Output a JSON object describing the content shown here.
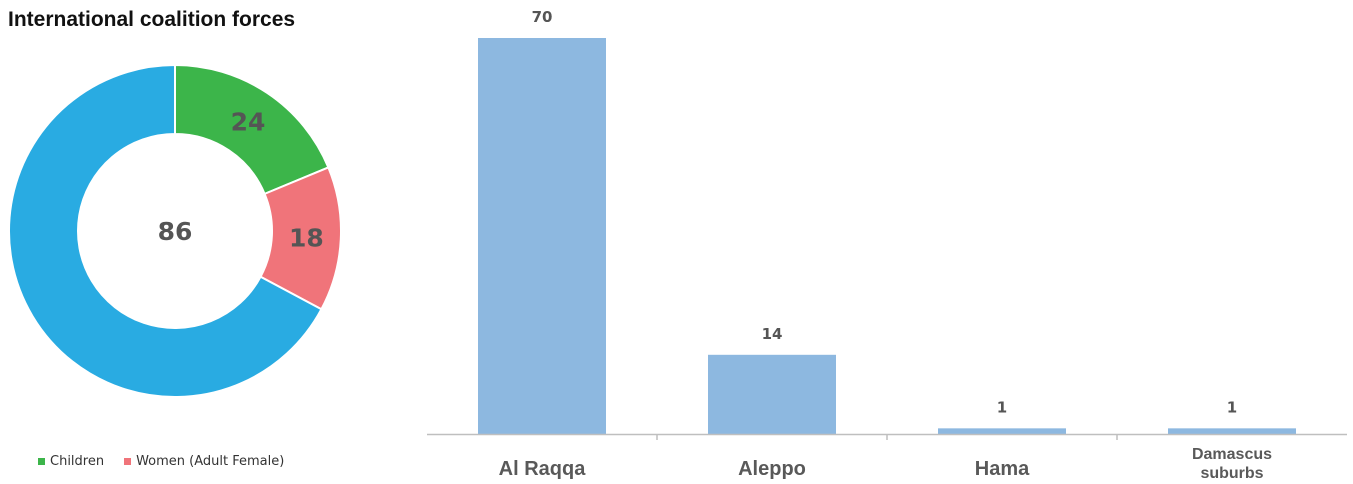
{
  "chart_data": [
    {
      "type": "pie",
      "title": "International coalition forces",
      "center_label": "86",
      "slices": [
        {
          "name": "Children",
          "value": 24,
          "label": "24",
          "color": "#3cb54a"
        },
        {
          "name": "Women (Adult Female)",
          "value": 18,
          "label": "18",
          "color": "#f0747a"
        },
        {
          "name": "",
          "value": 86,
          "label": "",
          "color": "#29abe2"
        }
      ],
      "legend": [
        "Children",
        "Women (Adult Female)"
      ],
      "legend_position": "bottom"
    },
    {
      "type": "bar",
      "categories": [
        "Al Raqqa",
        "Aleppo",
        "Hama",
        "Damascus suburbs"
      ],
      "category_lines": [
        [
          "Al Raqqa"
        ],
        [
          "Aleppo"
        ],
        [
          "Hama"
        ],
        [
          "Damascus",
          "suburbs"
        ]
      ],
      "values": [
        70,
        14,
        1,
        1
      ],
      "color": "#8db8e0",
      "ylim": [
        0,
        70
      ],
      "grid": false
    }
  ]
}
